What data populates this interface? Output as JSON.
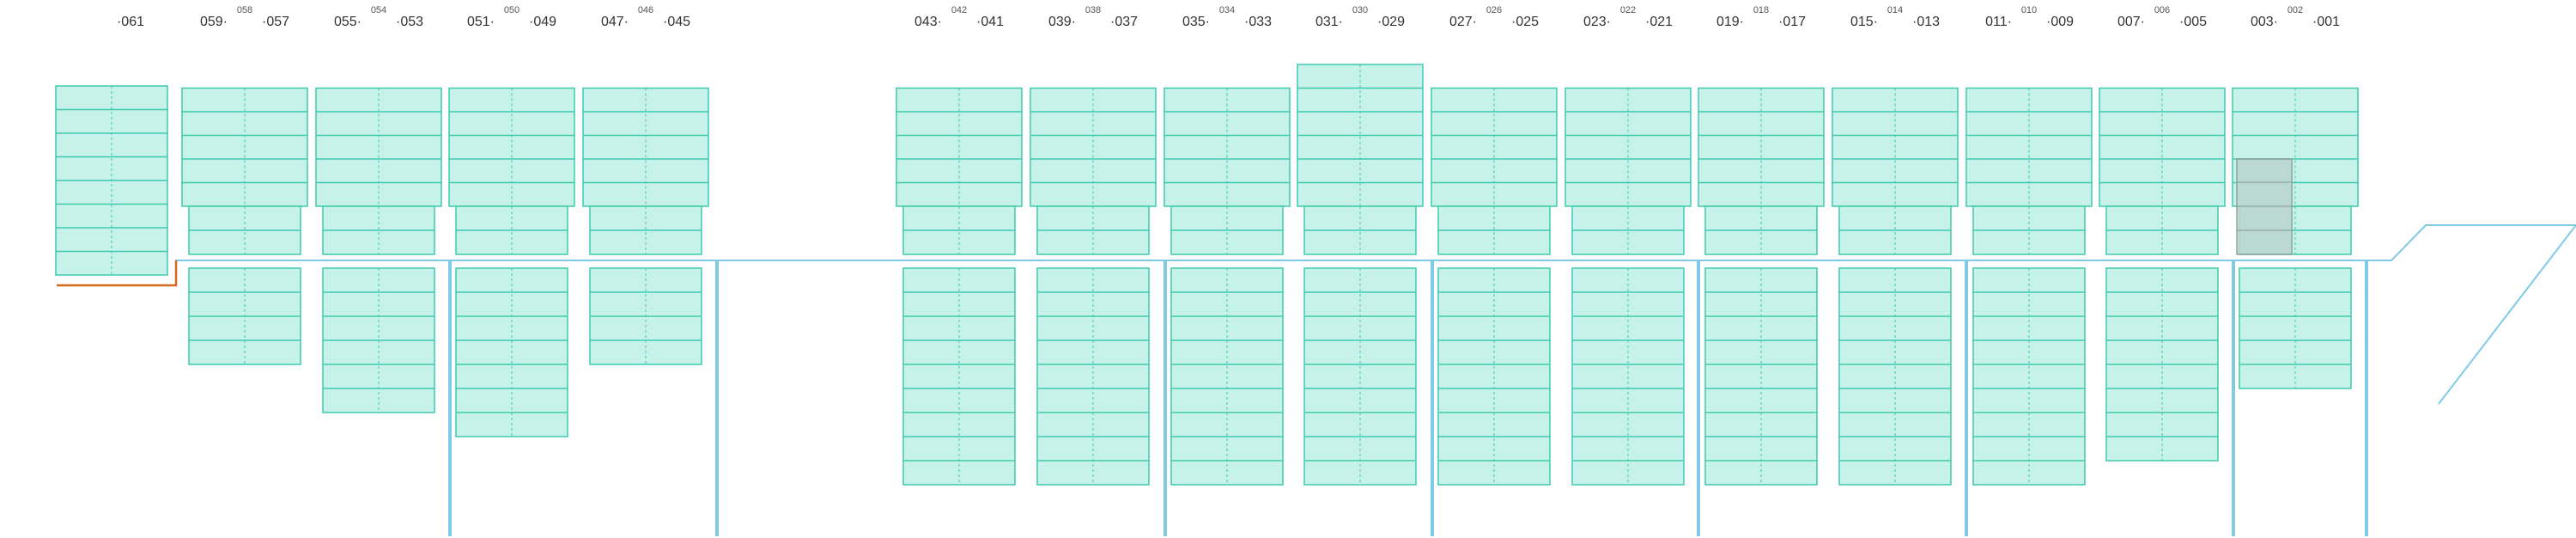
{
  "colors": {
    "hull": "#7fcbe6",
    "bulkhead": "#7fcbe6",
    "cell_fill": "#c6f2e9",
    "cell_stroke": "#3ec9ad",
    "highlight_fill": "#bcd6d0",
    "highlight_stroke": "#8a9a98",
    "deck_edge": "#d2691e",
    "text": "#333333"
  },
  "bay_labels": [
    {
      "left": "",
      "mid": "",
      "right": "·061"
    },
    {
      "left": "059·",
      "mid": "058",
      "right": "·057"
    },
    {
      "left": "055·",
      "mid": "054",
      "right": "·053"
    },
    {
      "left": "051·",
      "mid": "050",
      "right": "·049"
    },
    {
      "left": "047·",
      "mid": "046",
      "right": "·045"
    },
    {
      "left": "043·",
      "mid": "042",
      "right": "·041"
    },
    {
      "left": "039·",
      "mid": "038",
      "right": "·037"
    },
    {
      "left": "035·",
      "mid": "034",
      "right": "·033"
    },
    {
      "left": "031·",
      "mid": "030",
      "right": "·029"
    },
    {
      "left": "027·",
      "mid": "026",
      "right": "·025"
    },
    {
      "left": "023·",
      "mid": "022",
      "right": "·021"
    },
    {
      "left": "019·",
      "mid": "018",
      "right": "·017"
    },
    {
      "left": "015·",
      "mid": "014",
      "right": "·013"
    },
    {
      "left": "011·",
      "mid": "010",
      "right": "·009"
    },
    {
      "left": "007·",
      "mid": "006",
      "right": "·005"
    },
    {
      "left": "003·",
      "mid": "002",
      "right": "·001"
    }
  ],
  "deck_tiers": [
    5,
    5,
    5,
    5,
    5,
    5,
    5,
    5,
    6,
    5,
    5,
    5,
    5,
    5,
    5,
    5
  ],
  "hold_tiers": [
    0,
    4,
    6,
    7,
    4,
    9,
    9,
    9,
    9,
    9,
    9,
    9,
    9,
    9,
    8,
    5
  ],
  "selected_cell": {
    "bay": "002",
    "area": "deck"
  }
}
